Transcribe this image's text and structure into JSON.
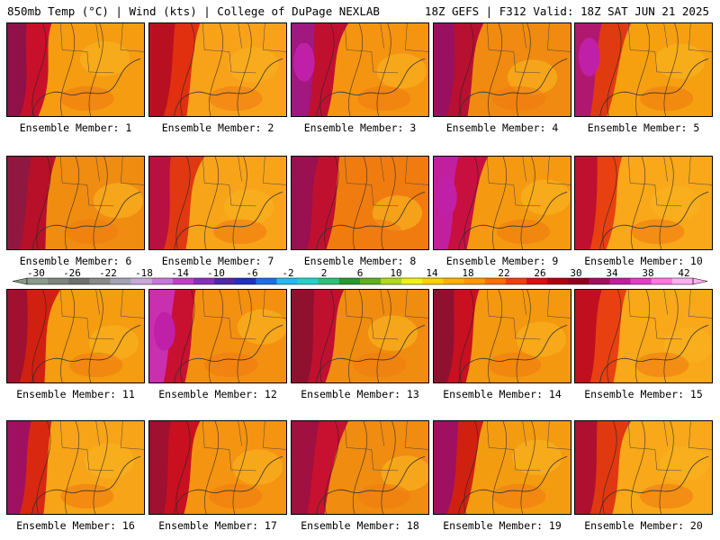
{
  "header": {
    "left": "850mb Temp (°C) | Wind (kts) | College of DuPage NEXLAB",
    "right": "18Z GEFS | F312 Valid: 18Z SAT JUN 21 2025"
  },
  "colorbar": {
    "ticks": [
      "-30",
      "-26",
      "-22",
      "-18",
      "-14",
      "-10",
      "-6",
      "-2",
      "2",
      "6",
      "10",
      "14",
      "18",
      "22",
      "26",
      "30",
      "34",
      "38",
      "42"
    ],
    "colors": [
      "#8c9a8c",
      "#7d857d",
      "#6e706e",
      "#8a8a8a",
      "#a3a3b3",
      "#c8a8d8",
      "#c878d8",
      "#c040c8",
      "#8a30b8",
      "#5028a8",
      "#2030c0",
      "#1e70e0",
      "#28b8f0",
      "#28d0c8",
      "#30c078",
      "#289830",
      "#60b020",
      "#b0d820",
      "#f0f018",
      "#ffd000",
      "#ffb000",
      "#ff9800",
      "#ff7000",
      "#f04010",
      "#d81010",
      "#b00010",
      "#900020",
      "#a01060",
      "#c020a0",
      "#e040c8",
      "#ff78e0",
      "#ffb0f0"
    ]
  },
  "panels": [
    {
      "label": "Ensemble Member: 1",
      "base": "#f59c10",
      "west": "#c8102a",
      "far": "#901048",
      "magenta": false
    },
    {
      "label": "Ensemble Member: 2",
      "base": "#f8a21a",
      "west": "#e03010",
      "far": "#b81020",
      "magenta": false
    },
    {
      "label": "Ensemble Member: 3",
      "base": "#f59410",
      "west": "#c01030",
      "far": "#a01880",
      "magenta": true
    },
    {
      "label": "Ensemble Member: 4",
      "base": "#f08a10",
      "west": "#b81030",
      "far": "#9a1060",
      "magenta": false
    },
    {
      "label": "Ensemble Member: 5",
      "base": "#f6a010",
      "west": "#e03a10",
      "far": "#b01870",
      "magenta": true
    },
    {
      "label": "Ensemble Member: 6",
      "base": "#f08c10",
      "west": "#b81028",
      "far": "#901840",
      "magenta": false
    },
    {
      "label": "Ensemble Member: 7",
      "base": "#f8a418",
      "west": "#e03810",
      "far": "#b81040",
      "magenta": false
    },
    {
      "label": "Ensemble Member: 8",
      "base": "#f07c10",
      "west": "#c01030",
      "far": "#9a1050",
      "magenta": false
    },
    {
      "label": "Ensemble Member: 9",
      "base": "#f59a10",
      "west": "#c81040",
      "far": "#c020a0",
      "magenta": true
    },
    {
      "label": "Ensemble Member: 10",
      "base": "#f8a818",
      "west": "#e84010",
      "far": "#c01030",
      "magenta": false
    },
    {
      "label": "Ensemble Member: 11",
      "base": "#f59c10",
      "west": "#d02010",
      "far": "#a01030",
      "magenta": false
    },
    {
      "label": "Ensemble Member: 12",
      "base": "#f49010",
      "west": "#c81030",
      "far": "#c830b0",
      "magenta": true
    },
    {
      "label": "Ensemble Member: 13",
      "base": "#f08c10",
      "west": "#c01030",
      "far": "#901030",
      "magenta": false
    },
    {
      "label": "Ensemble Member: 14",
      "base": "#f4980f",
      "west": "#c81020",
      "far": "#901030",
      "magenta": false
    },
    {
      "label": "Ensemble Member: 15",
      "base": "#f8a818",
      "west": "#e84010",
      "far": "#c01020",
      "magenta": false
    },
    {
      "label": "Ensemble Member: 16",
      "base": "#f8a418",
      "west": "#d82810",
      "far": "#a01060",
      "magenta": false
    },
    {
      "label": "Ensemble Member: 17",
      "base": "#f59410",
      "west": "#c81020",
      "far": "#a01030",
      "magenta": false
    },
    {
      "label": "Ensemble Member: 18",
      "base": "#f08c10",
      "west": "#c81030",
      "far": "#a01040",
      "magenta": false
    },
    {
      "label": "Ensemble Member: 19",
      "base": "#f49c10",
      "west": "#d02010",
      "far": "#a01060",
      "magenta": false
    },
    {
      "label": "Ensemble Member: 20",
      "base": "#f8a818",
      "west": "#e03810",
      "far": "#b01030",
      "magenta": false
    }
  ]
}
